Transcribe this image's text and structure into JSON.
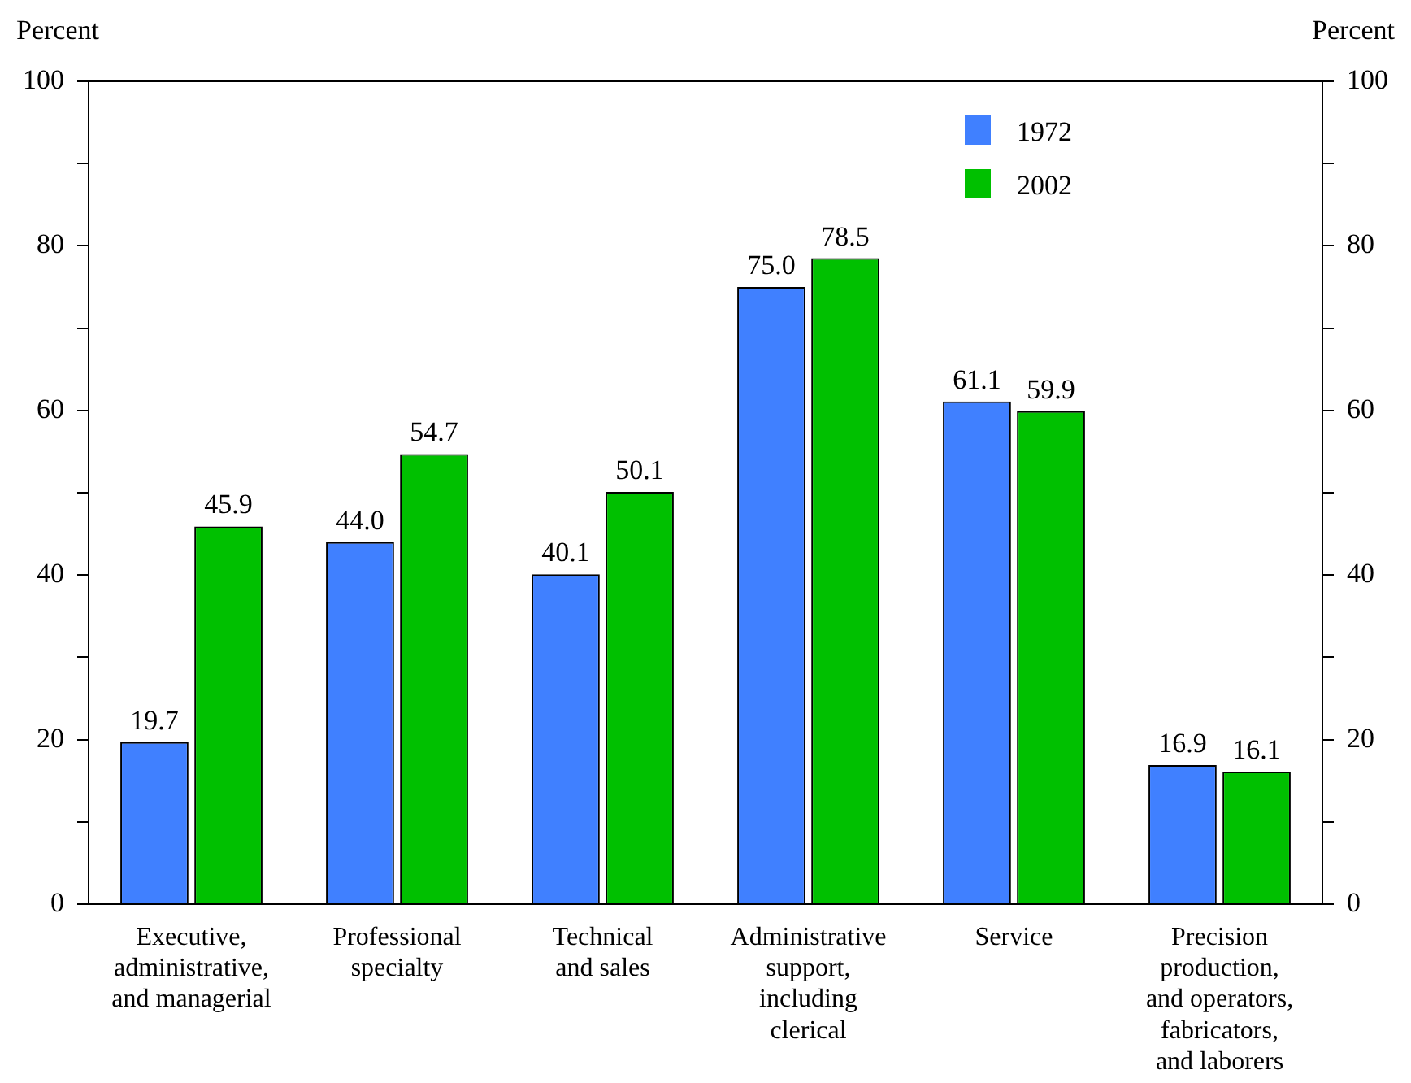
{
  "chart_data": {
    "type": "bar",
    "ylabel": "Percent",
    "y2label": "Percent",
    "categories": [
      "Executive,\nadministrative,\nand managerial",
      "Professional\nspecialty",
      "Technical\nand sales",
      "Administrative\nsupport,\nincluding\nclerical",
      "Service",
      "Precision\nproduction,\nand operators,\nfabricators,\nand laborers"
    ],
    "series": [
      {
        "name": "1972",
        "color": "#4080ff",
        "values": [
          19.7,
          44.0,
          40.1,
          75.0,
          61.1,
          16.9
        ],
        "value_labels": [
          "19.7",
          "44.0",
          "40.1",
          "75.0",
          "61.1",
          "16.9"
        ]
      },
      {
        "name": "2002",
        "color": "#00c000",
        "values": [
          45.9,
          54.7,
          50.1,
          78.5,
          59.9,
          16.1
        ],
        "value_labels": [
          "45.9",
          "54.7",
          "50.1",
          "78.5",
          "59.9",
          "16.1"
        ]
      }
    ],
    "ylim": [
      0,
      100
    ],
    "yticks": [
      0,
      {
        "value": 10,
        "label": null
      },
      20,
      {
        "value": 30,
        "label": null
      },
      40,
      {
        "value": 50,
        "label": null
      },
      60,
      {
        "value": 70,
        "label": null
      },
      80,
      {
        "value": 90,
        "label": null
      },
      100
    ],
    "y2lim": [
      0,
      100
    ],
    "y2ticks": [
      0,
      {
        "value": 10,
        "label": null
      },
      20,
      {
        "value": 30,
        "label": null
      },
      40,
      {
        "value": 50,
        "label": null
      },
      60,
      {
        "value": 70,
        "label": null
      },
      80,
      {
        "value": 90,
        "label": null
      },
      100
    ],
    "grid": false,
    "legend": "top right"
  }
}
